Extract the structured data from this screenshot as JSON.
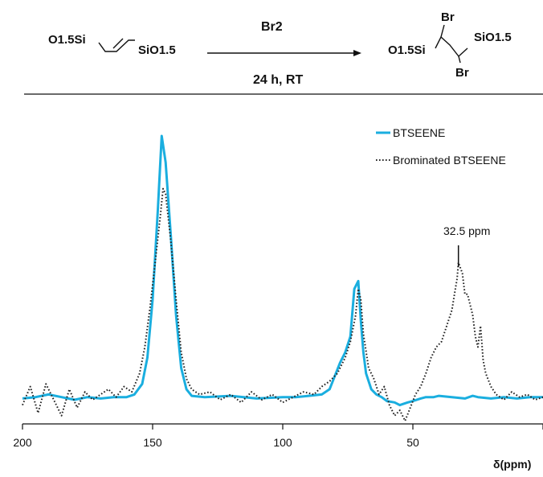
{
  "scheme": {
    "reactant": {
      "left_group": "O1.5Si",
      "right_group": "SiO1.5"
    },
    "arrow_top_label": "Br2",
    "arrow_bottom_label": "24 h, RT",
    "product": {
      "left_group": "O1.5Si",
      "right_group": "SiO1.5",
      "bromine_top": "Br",
      "bromine_bottom": "Br"
    }
  },
  "chart_data": {
    "type": "line",
    "title": "",
    "xlabel": "δ(ppm)",
    "ylabel": "",
    "x_reversed": true,
    "xlim": [
      200,
      0
    ],
    "x_ticks": [
      200,
      150,
      100,
      50,
      0
    ],
    "y_ticks_shown": false,
    "legend_position": "top-right",
    "series": [
      {
        "name": "BTSEENE",
        "color": "#1aaedf",
        "style": "solid",
        "x": [
          200,
          195,
          190,
          185,
          180,
          175,
          170,
          165,
          160,
          157,
          154,
          152,
          150,
          148,
          146.5,
          145,
          143,
          141,
          139,
          137,
          135,
          130,
          120,
          110,
          100,
          95,
          90,
          85,
          82,
          80,
          78,
          76,
          74,
          72.5,
          71,
          70,
          69,
          68,
          66,
          64,
          62,
          60,
          57,
          55,
          52,
          50,
          47,
          45,
          42,
          40,
          35,
          30,
          27,
          25,
          20,
          15,
          10,
          5,
          0
        ],
        "y": [
          0.005,
          0.01,
          0.02,
          0.01,
          0.0,
          0.01,
          0.005,
          0.01,
          0.01,
          0.02,
          0.06,
          0.16,
          0.38,
          0.72,
          1.0,
          0.9,
          0.62,
          0.32,
          0.12,
          0.04,
          0.015,
          0.01,
          0.015,
          0.005,
          0.01,
          0.01,
          0.015,
          0.02,
          0.04,
          0.09,
          0.14,
          0.18,
          0.24,
          0.42,
          0.45,
          0.3,
          0.18,
          0.1,
          0.04,
          0.02,
          0.01,
          -0.005,
          -0.01,
          -0.02,
          -0.01,
          -0.005,
          0.005,
          0.01,
          0.01,
          0.015,
          0.01,
          0.005,
          0.015,
          0.01,
          0.005,
          0.01,
          0.005,
          0.01,
          0.01
        ]
      },
      {
        "name": "Brominated BTSEENE",
        "color": "#222222",
        "style": "dotted",
        "x": [
          200,
          197,
          194,
          191,
          188,
          185,
          182,
          179,
          176,
          173,
          170,
          167,
          164,
          161,
          158,
          155,
          153,
          151,
          149,
          147,
          146,
          145,
          143,
          141,
          139,
          137,
          135,
          132,
          128,
          124,
          120,
          116,
          112,
          108,
          104,
          100,
          96,
          92,
          88,
          85,
          82,
          79,
          76,
          74,
          72,
          71,
          70,
          69,
          67,
          65,
          63,
          61,
          59,
          57,
          55,
          53,
          51,
          49,
          47,
          45,
          43,
          41,
          39,
          37,
          35,
          34,
          33,
          32.5,
          31,
          30,
          29,
          28,
          27,
          26,
          25,
          24,
          23,
          22,
          20,
          18,
          15,
          12,
          9,
          6,
          3,
          0
        ],
        "y": [
          -0.02,
          0.05,
          -0.05,
          0.06,
          0.0,
          -0.06,
          0.04,
          -0.03,
          0.03,
          0.0,
          0.02,
          0.04,
          0.01,
          0.05,
          0.03,
          0.1,
          0.2,
          0.35,
          0.52,
          0.7,
          0.8,
          0.78,
          0.6,
          0.38,
          0.18,
          0.08,
          0.04,
          0.02,
          0.03,
          0.0,
          0.02,
          -0.01,
          0.03,
          0.0,
          0.02,
          -0.01,
          0.01,
          0.03,
          0.02,
          0.05,
          0.07,
          0.1,
          0.16,
          0.22,
          0.32,
          0.42,
          0.38,
          0.25,
          0.12,
          0.08,
          0.02,
          0.05,
          -0.02,
          -0.06,
          -0.04,
          -0.08,
          -0.03,
          0.02,
          0.05,
          0.1,
          0.16,
          0.2,
          0.22,
          0.28,
          0.34,
          0.4,
          0.46,
          0.52,
          0.48,
          0.4,
          0.4,
          0.36,
          0.32,
          0.24,
          0.2,
          0.28,
          0.15,
          0.1,
          0.05,
          0.02,
          0.0,
          0.03,
          0.01,
          0.02,
          0.0,
          0.01
        ]
      }
    ],
    "annotations": [
      {
        "text": "32.5 ppm",
        "x": 32.5
      }
    ]
  }
}
